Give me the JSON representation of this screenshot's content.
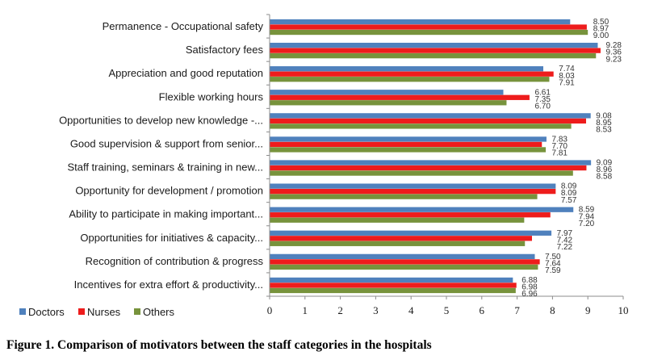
{
  "caption": "Figure 1. Comparison of motivators between the staff categories in the hospitals",
  "chart_data": {
    "type": "bar",
    "orientation": "horizontal",
    "title": "",
    "xlabel": "",
    "ylabel": "",
    "xlim": [
      0,
      10
    ],
    "xticks": [
      "0",
      "1",
      "2",
      "3",
      "4",
      "5",
      "6",
      "7",
      "8",
      "9",
      "10"
    ],
    "grid": false,
    "legend_position": "bottom-left",
    "categories": [
      "Permanence - Occupational safety",
      "Satisfactory fees",
      "Appreciation and good reputation",
      "Flexible working hours",
      "Opportunities to develop new knowledge -...",
      "Good supervision & support from senior...",
      "Staff training, seminars & training in new...",
      "Opportunity for development / promotion",
      "Ability to participate in making important...",
      "Opportunities for initiatives & capacity...",
      "Recognition of contribution & progress",
      "Incentives for extra effort & productivity..."
    ],
    "series": [
      {
        "name": "Doctors",
        "color": "#4f81bd",
        "values": [
          8.5,
          9.28,
          7.74,
          6.61,
          9.08,
          7.83,
          9.09,
          8.09,
          8.59,
          7.97,
          7.5,
          6.88
        ],
        "labels": [
          "8.50",
          "9.28",
          "7.74",
          "6.61",
          "9.08",
          "7.83",
          "9.09",
          "8.09",
          "8.59",
          "7.97",
          "7.50",
          "6.88"
        ]
      },
      {
        "name": "Nurses",
        "color": "#ee1c1c",
        "values": [
          8.97,
          9.36,
          8.03,
          7.35,
          8.95,
          7.7,
          8.96,
          8.09,
          7.94,
          7.42,
          7.64,
          6.98
        ],
        "labels": [
          "8.97",
          "9.36",
          "8.03",
          "7.35",
          "8.95",
          "7.70",
          "8.96",
          "8.09",
          "7.94",
          "7.42",
          "7.64",
          "6.98"
        ]
      },
      {
        "name": "Others",
        "color": "#77933c",
        "values": [
          9.0,
          9.23,
          7.91,
          6.7,
          8.53,
          7.81,
          8.58,
          7.57,
          7.2,
          7.22,
          7.59,
          6.96
        ],
        "labels": [
          "9.00",
          "9.23",
          "7.91",
          "6.70",
          "8.53",
          "7.81",
          "8.58",
          "7.57",
          "7.20",
          "7.22",
          "7.59",
          "6.96"
        ]
      }
    ]
  }
}
